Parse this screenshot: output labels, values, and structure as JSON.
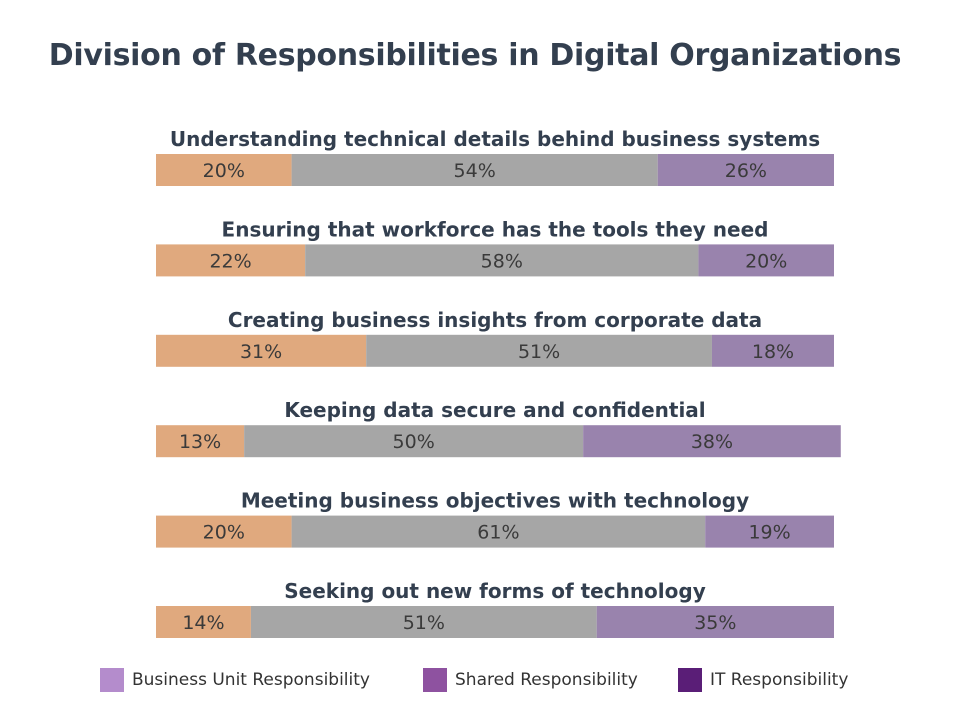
{
  "chart_data": {
    "type": "bar",
    "orientation": "horizontal",
    "stacked": true,
    "percent": true,
    "title": "Division of Responsibilities in Digital Organizations",
    "categories": [
      "Understanding technical details behind business systems",
      "Ensuring that workforce has the tools they need",
      "Creating business insights from corporate data",
      "Keeping data secure and confidential",
      "Meeting business objectives with technology",
      "Seeking out new forms of technology"
    ],
    "segments": [
      {
        "values": [
          20,
          22,
          31,
          13,
          20,
          14
        ],
        "color": "#e0a97e"
      },
      {
        "values": [
          54,
          58,
          51,
          50,
          61,
          51
        ],
        "color": "#a6a6a6"
      },
      {
        "values": [
          26,
          20,
          18,
          38,
          19,
          35
        ],
        "color": "#9983ad"
      }
    ],
    "value_suffix": "%",
    "xlim": [
      0,
      100
    ],
    "grid": false,
    "legend": {
      "position": "bottom",
      "entries": [
        {
          "name": "Business Unit Responsibility",
          "color": "#b48ccc"
        },
        {
          "name": "Shared Responsibility",
          "color": "#8e52a0"
        },
        {
          "name": "IT Responsibility",
          "color": "#5a1e77"
        }
      ]
    }
  }
}
